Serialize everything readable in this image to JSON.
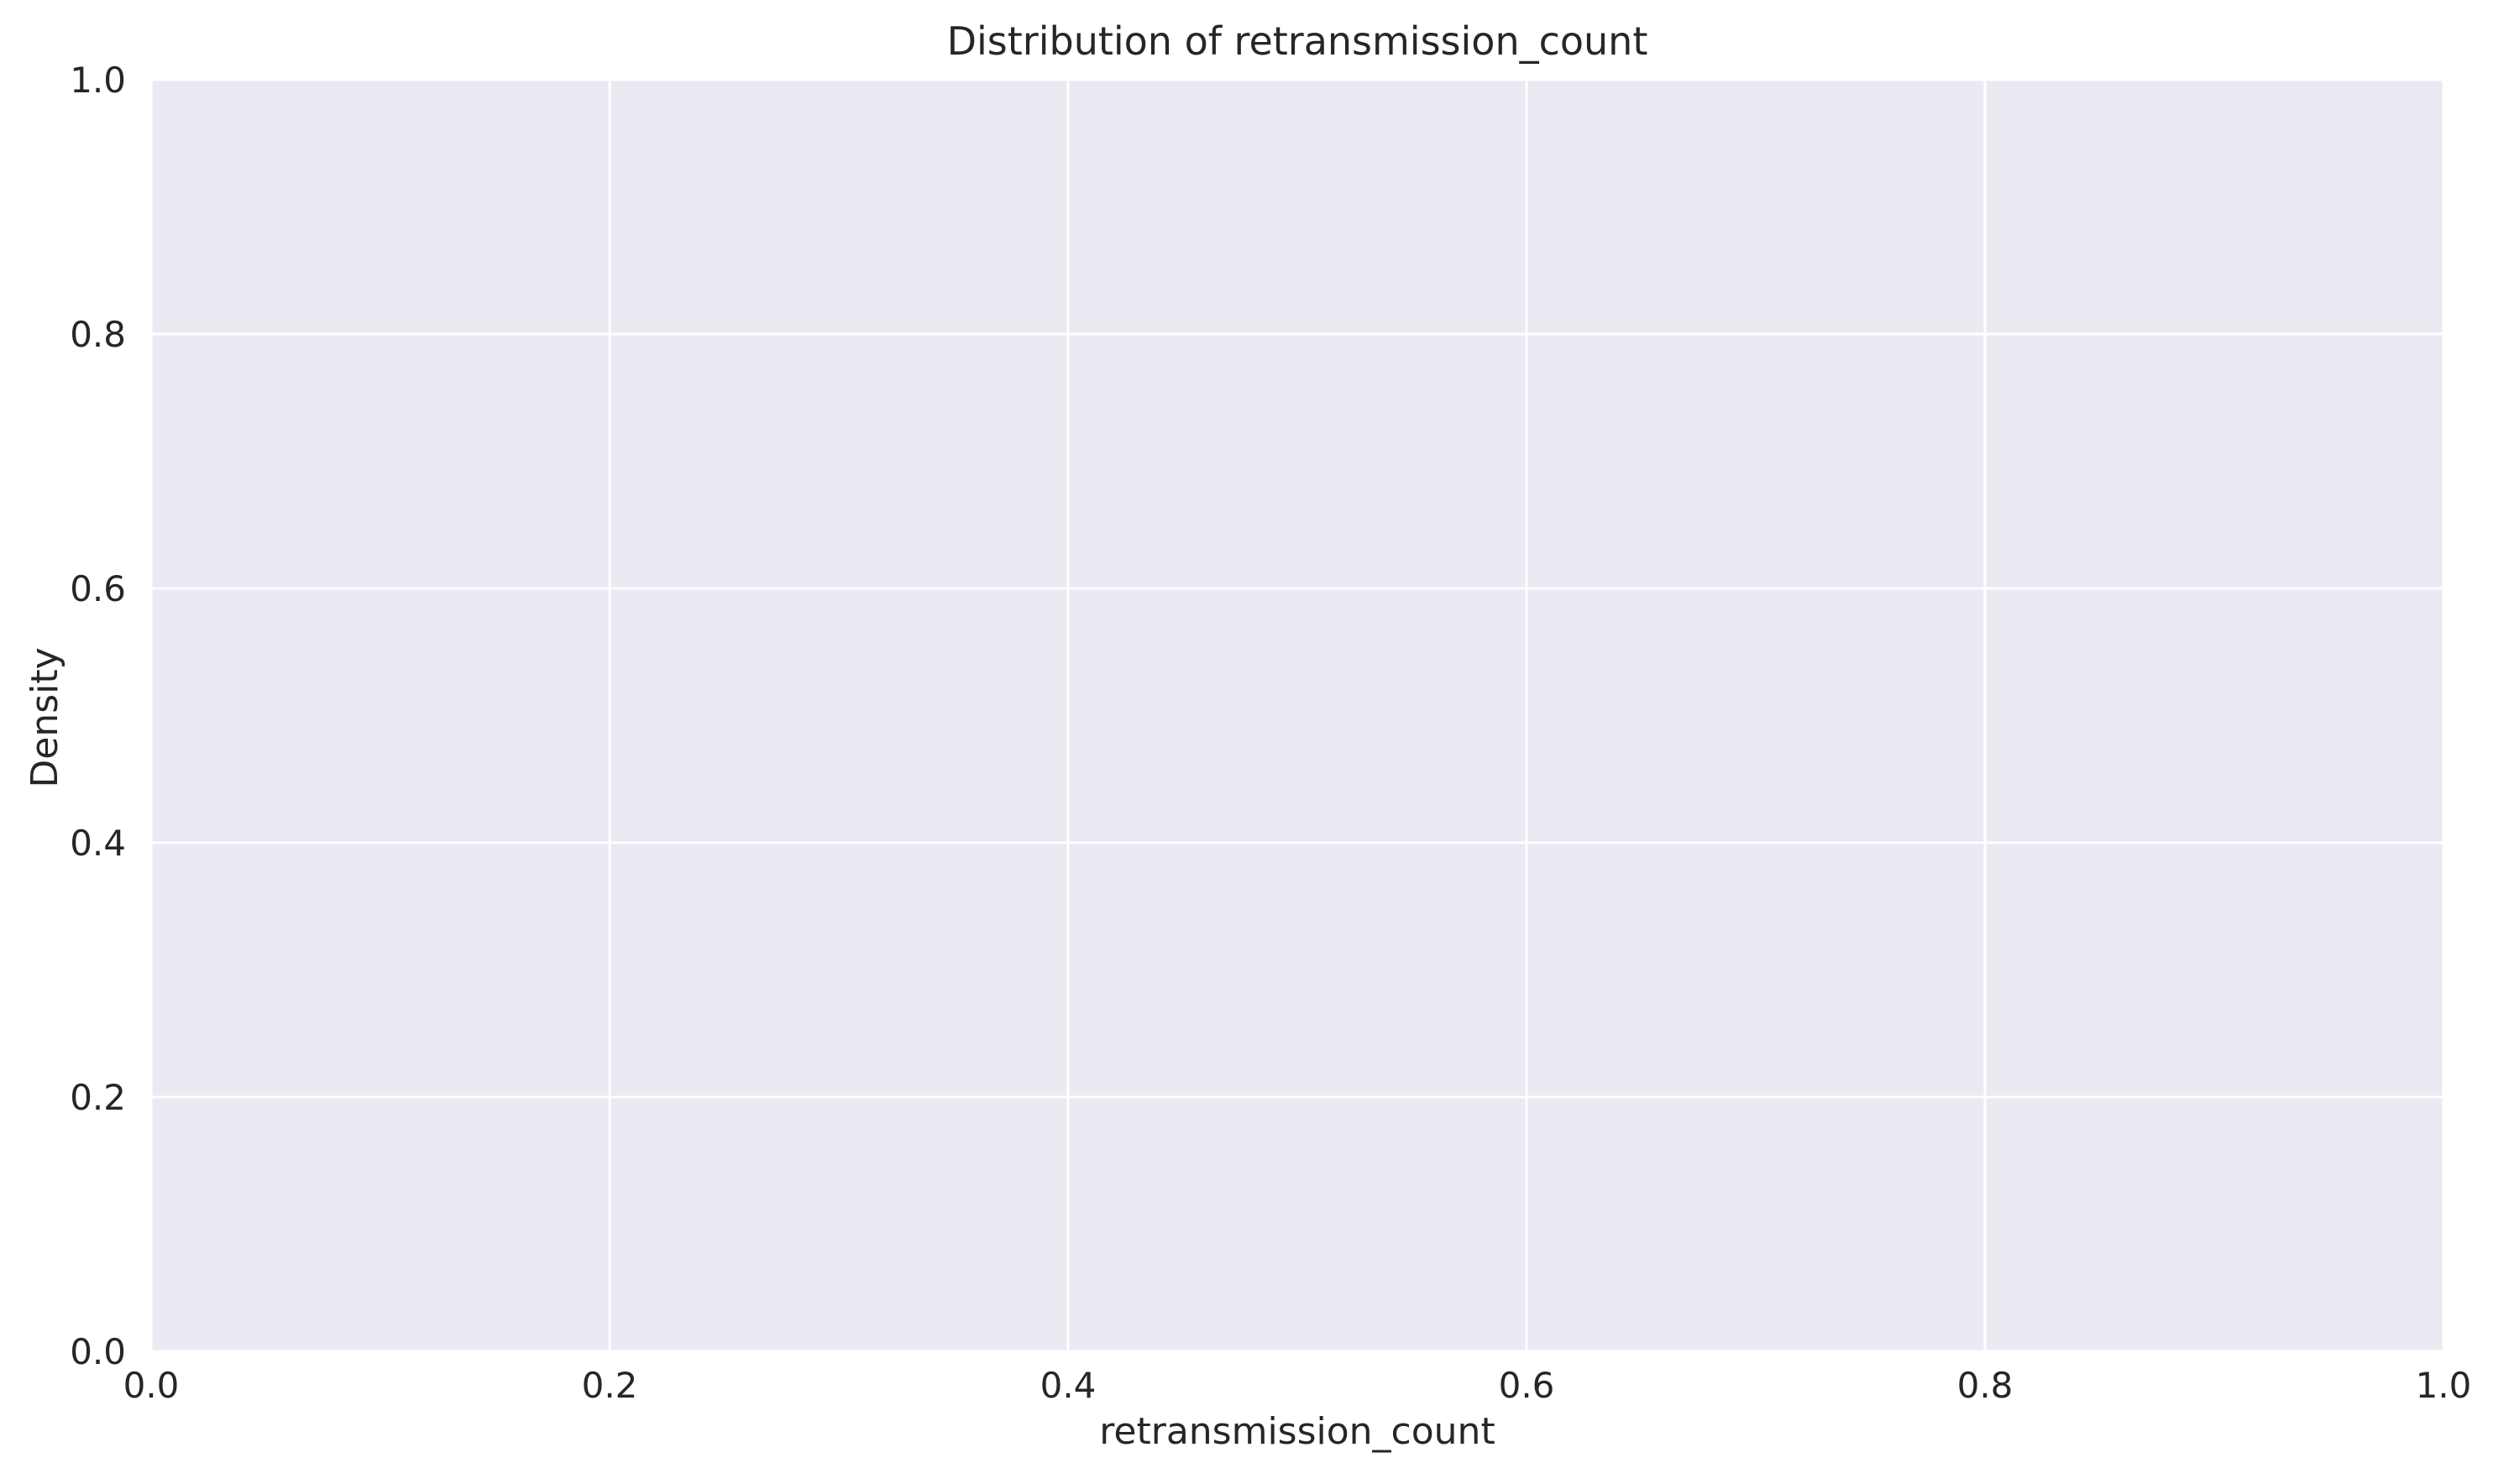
{
  "chart_data": {
    "type": "histogram",
    "title": "Distribution of retransmission_count",
    "xlabel": "retransmission_count",
    "ylabel": "Density",
    "xlim": [
      0.0,
      1.0
    ],
    "ylim": [
      0.0,
      1.0
    ],
    "x_ticks": [
      "0.0",
      "0.2",
      "0.4",
      "0.6",
      "0.8",
      "1.0"
    ],
    "y_ticks": [
      "0.0",
      "0.2",
      "0.4",
      "0.6",
      "0.8",
      "1.0"
    ],
    "series": [],
    "grid": true,
    "colors": {
      "plot_background": "#eaeaf2",
      "grid": "#ffffff",
      "text": "#262626"
    }
  }
}
